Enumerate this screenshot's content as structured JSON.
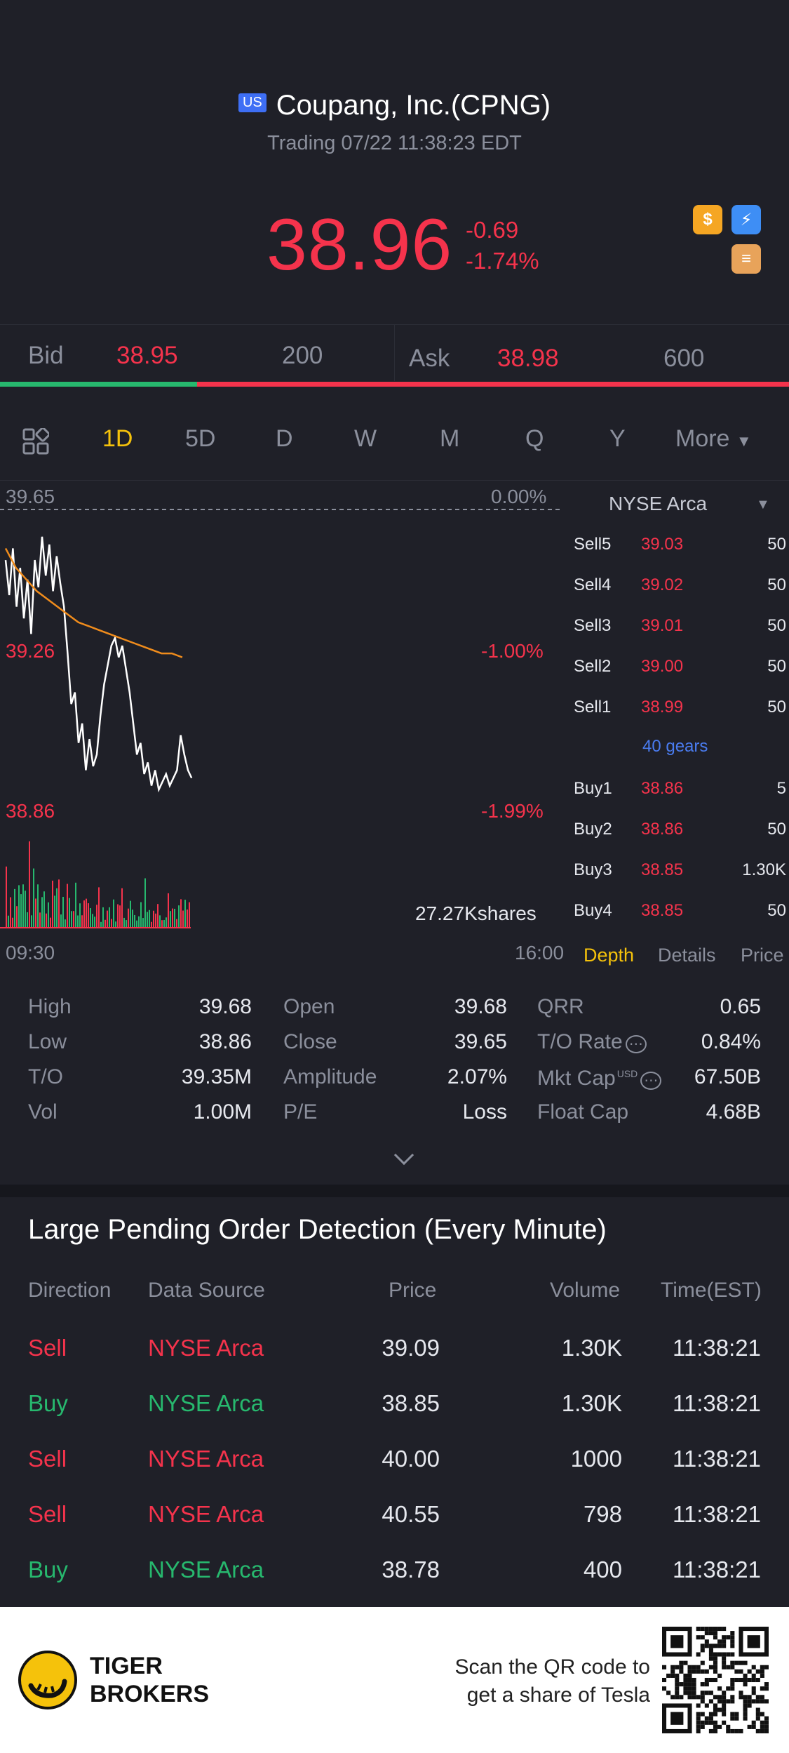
{
  "header": {
    "market_badge": "US",
    "title": "Coupang, Inc.(CPNG)",
    "subtitle": "Trading 07/22 11:38:23 EDT",
    "price": "38.96",
    "change": "-0.69",
    "change_pct": "-1.74%"
  },
  "quote": {
    "bid_label": "Bid",
    "bid_price": "38.95",
    "bid_size": "200",
    "ask_label": "Ask",
    "ask_price": "38.98",
    "ask_size": "600",
    "bid_ratio": 0.25
  },
  "tabs": [
    "1D",
    "5D",
    "D",
    "W",
    "M",
    "Q",
    "Y",
    "More"
  ],
  "chart": {
    "high_label": "39.65",
    "high_pct": "0.00%",
    "mid_label": "39.26",
    "mid_pct": "-1.00%",
    "low_label": "38.86",
    "low_pct": "-1.99%",
    "volume_label": "27.27Kshares",
    "start_time": "09:30",
    "end_time": "16:00"
  },
  "chart_data": {
    "type": "line",
    "ylim": [
      38.86,
      39.65
    ],
    "series": [
      {
        "values": [
          39.52,
          39.43,
          39.55,
          39.4,
          39.5,
          39.37,
          39.47,
          39.33,
          39.52,
          39.45,
          39.58,
          39.48,
          39.56,
          39.44,
          39.53,
          39.46,
          39.4,
          39.28,
          39.15,
          39.18,
          39.05,
          39.1,
          38.98,
          39.06,
          38.99,
          39.02,
          39.12,
          39.2,
          39.25,
          39.3,
          39.32,
          39.27,
          39.3,
          39.24,
          39.18,
          39.1,
          39.02,
          39.05,
          38.97,
          39.0,
          38.94,
          38.98,
          38.93,
          38.95,
          38.97,
          38.94,
          38.96,
          38.98,
          39.07,
          39.02,
          38.98,
          38.96
        ]
      },
      {
        "values": [
          39.55,
          39.5,
          39.47,
          39.44,
          39.42,
          39.4,
          39.38,
          39.36,
          39.35,
          39.34,
          39.33,
          39.32,
          39.31,
          39.3,
          39.29,
          39.28,
          39.28,
          39.27
        ]
      }
    ]
  },
  "depth": {
    "exchange": "NYSE Arca",
    "asks": [
      {
        "label": "Sell5",
        "price": "39.03",
        "vol": "50"
      },
      {
        "label": "Sell4",
        "price": "39.02",
        "vol": "50"
      },
      {
        "label": "Sell3",
        "price": "39.01",
        "vol": "50"
      },
      {
        "label": "Sell2",
        "price": "39.00",
        "vol": "50"
      },
      {
        "label": "Sell1",
        "price": "38.99",
        "vol": "50"
      }
    ],
    "gears": "40 gears",
    "bids": [
      {
        "label": "Buy1",
        "price": "38.86",
        "vol": "5"
      },
      {
        "label": "Buy2",
        "price": "38.86",
        "vol": "50"
      },
      {
        "label": "Buy3",
        "price": "38.85",
        "vol": "1.30K"
      },
      {
        "label": "Buy4",
        "price": "38.85",
        "vol": "50"
      }
    ],
    "tab_depth": "Depth",
    "tab_details": "Details",
    "tab_price": "Price"
  },
  "stats": {
    "high_label": "High",
    "high": "39.68",
    "low_label": "Low",
    "low": "38.86",
    "to_label": "T/O",
    "to": "39.35M",
    "vol_label": "Vol",
    "vol": "1.00M",
    "open_label": "Open",
    "open": "39.68",
    "close_label": "Close",
    "close": "39.65",
    "amp_label": "Amplitude",
    "amp": "2.07%",
    "pe_label": "P/E",
    "pe": "Loss",
    "qrr_label": "QRR",
    "qrr": "0.65",
    "torate_label": "T/O Rate",
    "torate": "0.84%",
    "mktcap_label": "Mkt Cap",
    "mktcap_unit": "USD",
    "mktcap": "67.50B",
    "floatcap_label": "Float Cap",
    "floatcap": "4.68B"
  },
  "orders": {
    "title": "Large Pending Order Detection (Every Minute)",
    "headers": [
      "Direction",
      "Data Source",
      "Price",
      "Volume",
      "Time(EST)"
    ],
    "rows": [
      {
        "dir": "Sell",
        "src": "NYSE Arca",
        "price": "39.09",
        "vol": "1.30K",
        "time": "11:38:21"
      },
      {
        "dir": "Buy",
        "src": "NYSE Arca",
        "price": "38.85",
        "vol": "1.30K",
        "time": "11:38:21"
      },
      {
        "dir": "Sell",
        "src": "NYSE Arca",
        "price": "40.00",
        "vol": "1000",
        "time": "11:38:21"
      },
      {
        "dir": "Sell",
        "src": "NYSE Arca",
        "price": "40.55",
        "vol": "798",
        "time": "11:38:21"
      },
      {
        "dir": "Buy",
        "src": "NYSE Arca",
        "price": "38.78",
        "vol": "400",
        "time": "11:38:21"
      }
    ]
  },
  "footer": {
    "brand_line1": "TIGER",
    "brand_line2": "BROKERS",
    "scan_line1": "Scan the QR code to",
    "scan_line2": "get a share of Tesla"
  }
}
